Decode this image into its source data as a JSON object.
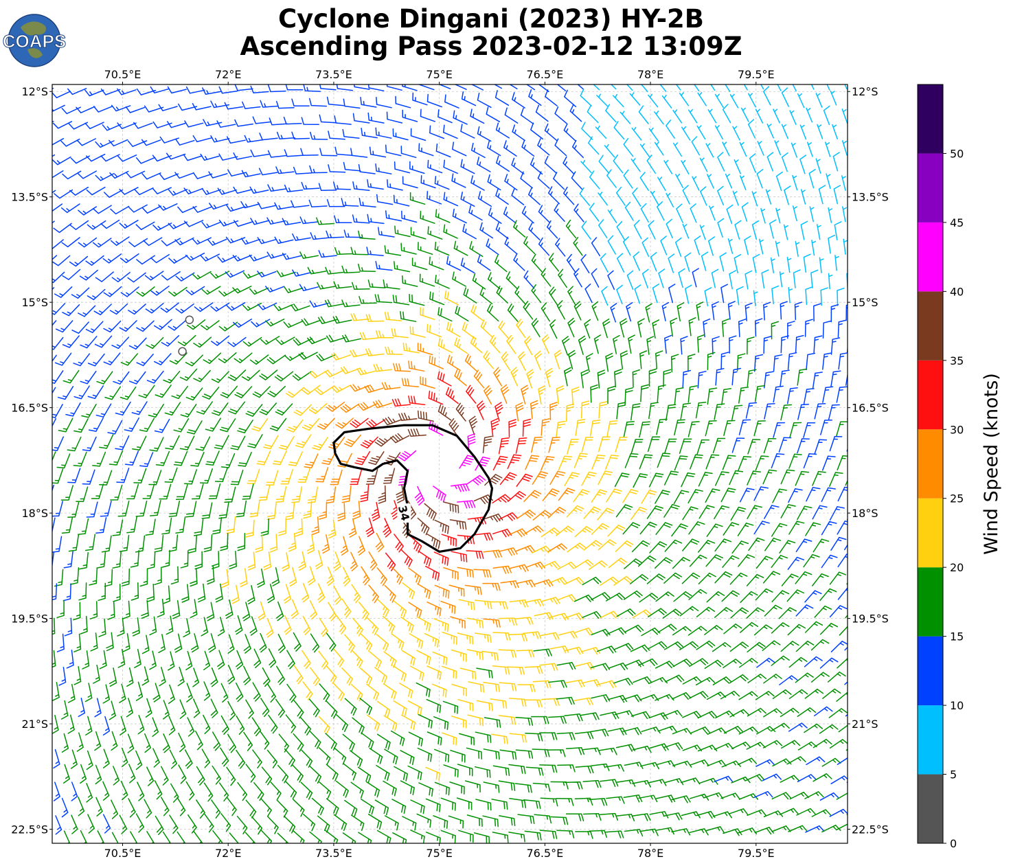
{
  "title": {
    "line1": "Cyclone Dingani (2023) HY-2B",
    "line2": "Ascending Pass 2023-02-12 13:09Z"
  },
  "logo": {
    "text": "COAPS",
    "ocean_color": "#2f67b7",
    "land_color": "#7a8a4a"
  },
  "map": {
    "lon_range": [
      69.5,
      80.8
    ],
    "lat_range": [
      -22.7,
      -11.9
    ],
    "lon_ticks": [
      "70.5°E",
      "72°E",
      "73.5°E",
      "75°E",
      "76.5°E",
      "78°E",
      "79.5°E"
    ],
    "lon_tick_values": [
      70.5,
      72,
      73.5,
      75,
      76.5,
      78,
      79.5
    ],
    "lat_ticks": [
      "12°S",
      "13.5°S",
      "15°S",
      "16.5°S",
      "18°S",
      "19.5°S",
      "21°S",
      "22.5°S"
    ],
    "lat_tick_values": [
      -12,
      -13.5,
      -15,
      -16.5,
      -18,
      -19.5,
      -21,
      -22.5
    ],
    "gridlines": true,
    "storm_center": {
      "lon": 75.0,
      "lat": -17.3
    },
    "contour_label": "34",
    "contour_outline": [
      [
        73.5,
        -17.0
      ],
      [
        73.65,
        -16.85
      ],
      [
        74.0,
        -16.8
      ],
      [
        74.5,
        -16.75
      ],
      [
        74.9,
        -16.75
      ],
      [
        75.25,
        -16.9
      ],
      [
        75.5,
        -17.2
      ],
      [
        75.7,
        -17.5
      ],
      [
        75.75,
        -17.65
      ],
      [
        75.7,
        -17.95
      ],
      [
        75.5,
        -18.3
      ],
      [
        75.3,
        -18.5
      ],
      [
        75.0,
        -18.55
      ],
      [
        74.75,
        -18.4
      ],
      [
        74.55,
        -18.3
      ],
      [
        74.55,
        -17.9
      ],
      [
        74.5,
        -17.65
      ],
      [
        74.55,
        -17.4
      ],
      [
        74.4,
        -17.25
      ],
      [
        74.2,
        -17.3
      ],
      [
        74.05,
        -17.4
      ],
      [
        73.8,
        -17.35
      ],
      [
        73.6,
        -17.3
      ],
      [
        73.52,
        -17.15
      ]
    ],
    "circle_markers": [
      {
        "lon": 71.45,
        "lat": -15.25
      },
      {
        "lon": 71.35,
        "lat": -15.7
      }
    ]
  },
  "colorbar": {
    "label": "Wind Speed (knots)",
    "boundaries": [
      0,
      5,
      10,
      15,
      20,
      25,
      30,
      35,
      40,
      45,
      50,
      55
    ],
    "tick_labels": [
      "0",
      "5",
      "10",
      "15",
      "20",
      "25",
      "30",
      "35",
      "40",
      "45",
      "50"
    ],
    "colors": [
      "#555555",
      "#00bfff",
      "#0040ff",
      "#009000",
      "#ffd010",
      "#ff8c00",
      "#ff1010",
      "#7a3a20",
      "#ff00ff",
      "#8800c0",
      "#300060"
    ]
  },
  "chart_data": {
    "type": "wind_barbs",
    "units": "knots",
    "center_lon": 75.0,
    "center_lat": -17.3,
    "rotation": "clockwise",
    "speed_profile": [
      {
        "radius_deg": 0.3,
        "speed": 42
      },
      {
        "radius_deg": 0.7,
        "speed": 37
      },
      {
        "radius_deg": 1.2,
        "speed": 30
      },
      {
        "radius_deg": 1.8,
        "speed": 24
      },
      {
        "radius_deg": 2.7,
        "speed": 19
      },
      {
        "radius_deg": 4.0,
        "speed": 16
      },
      {
        "radius_deg": 6.0,
        "speed": 14
      }
    ]
  }
}
